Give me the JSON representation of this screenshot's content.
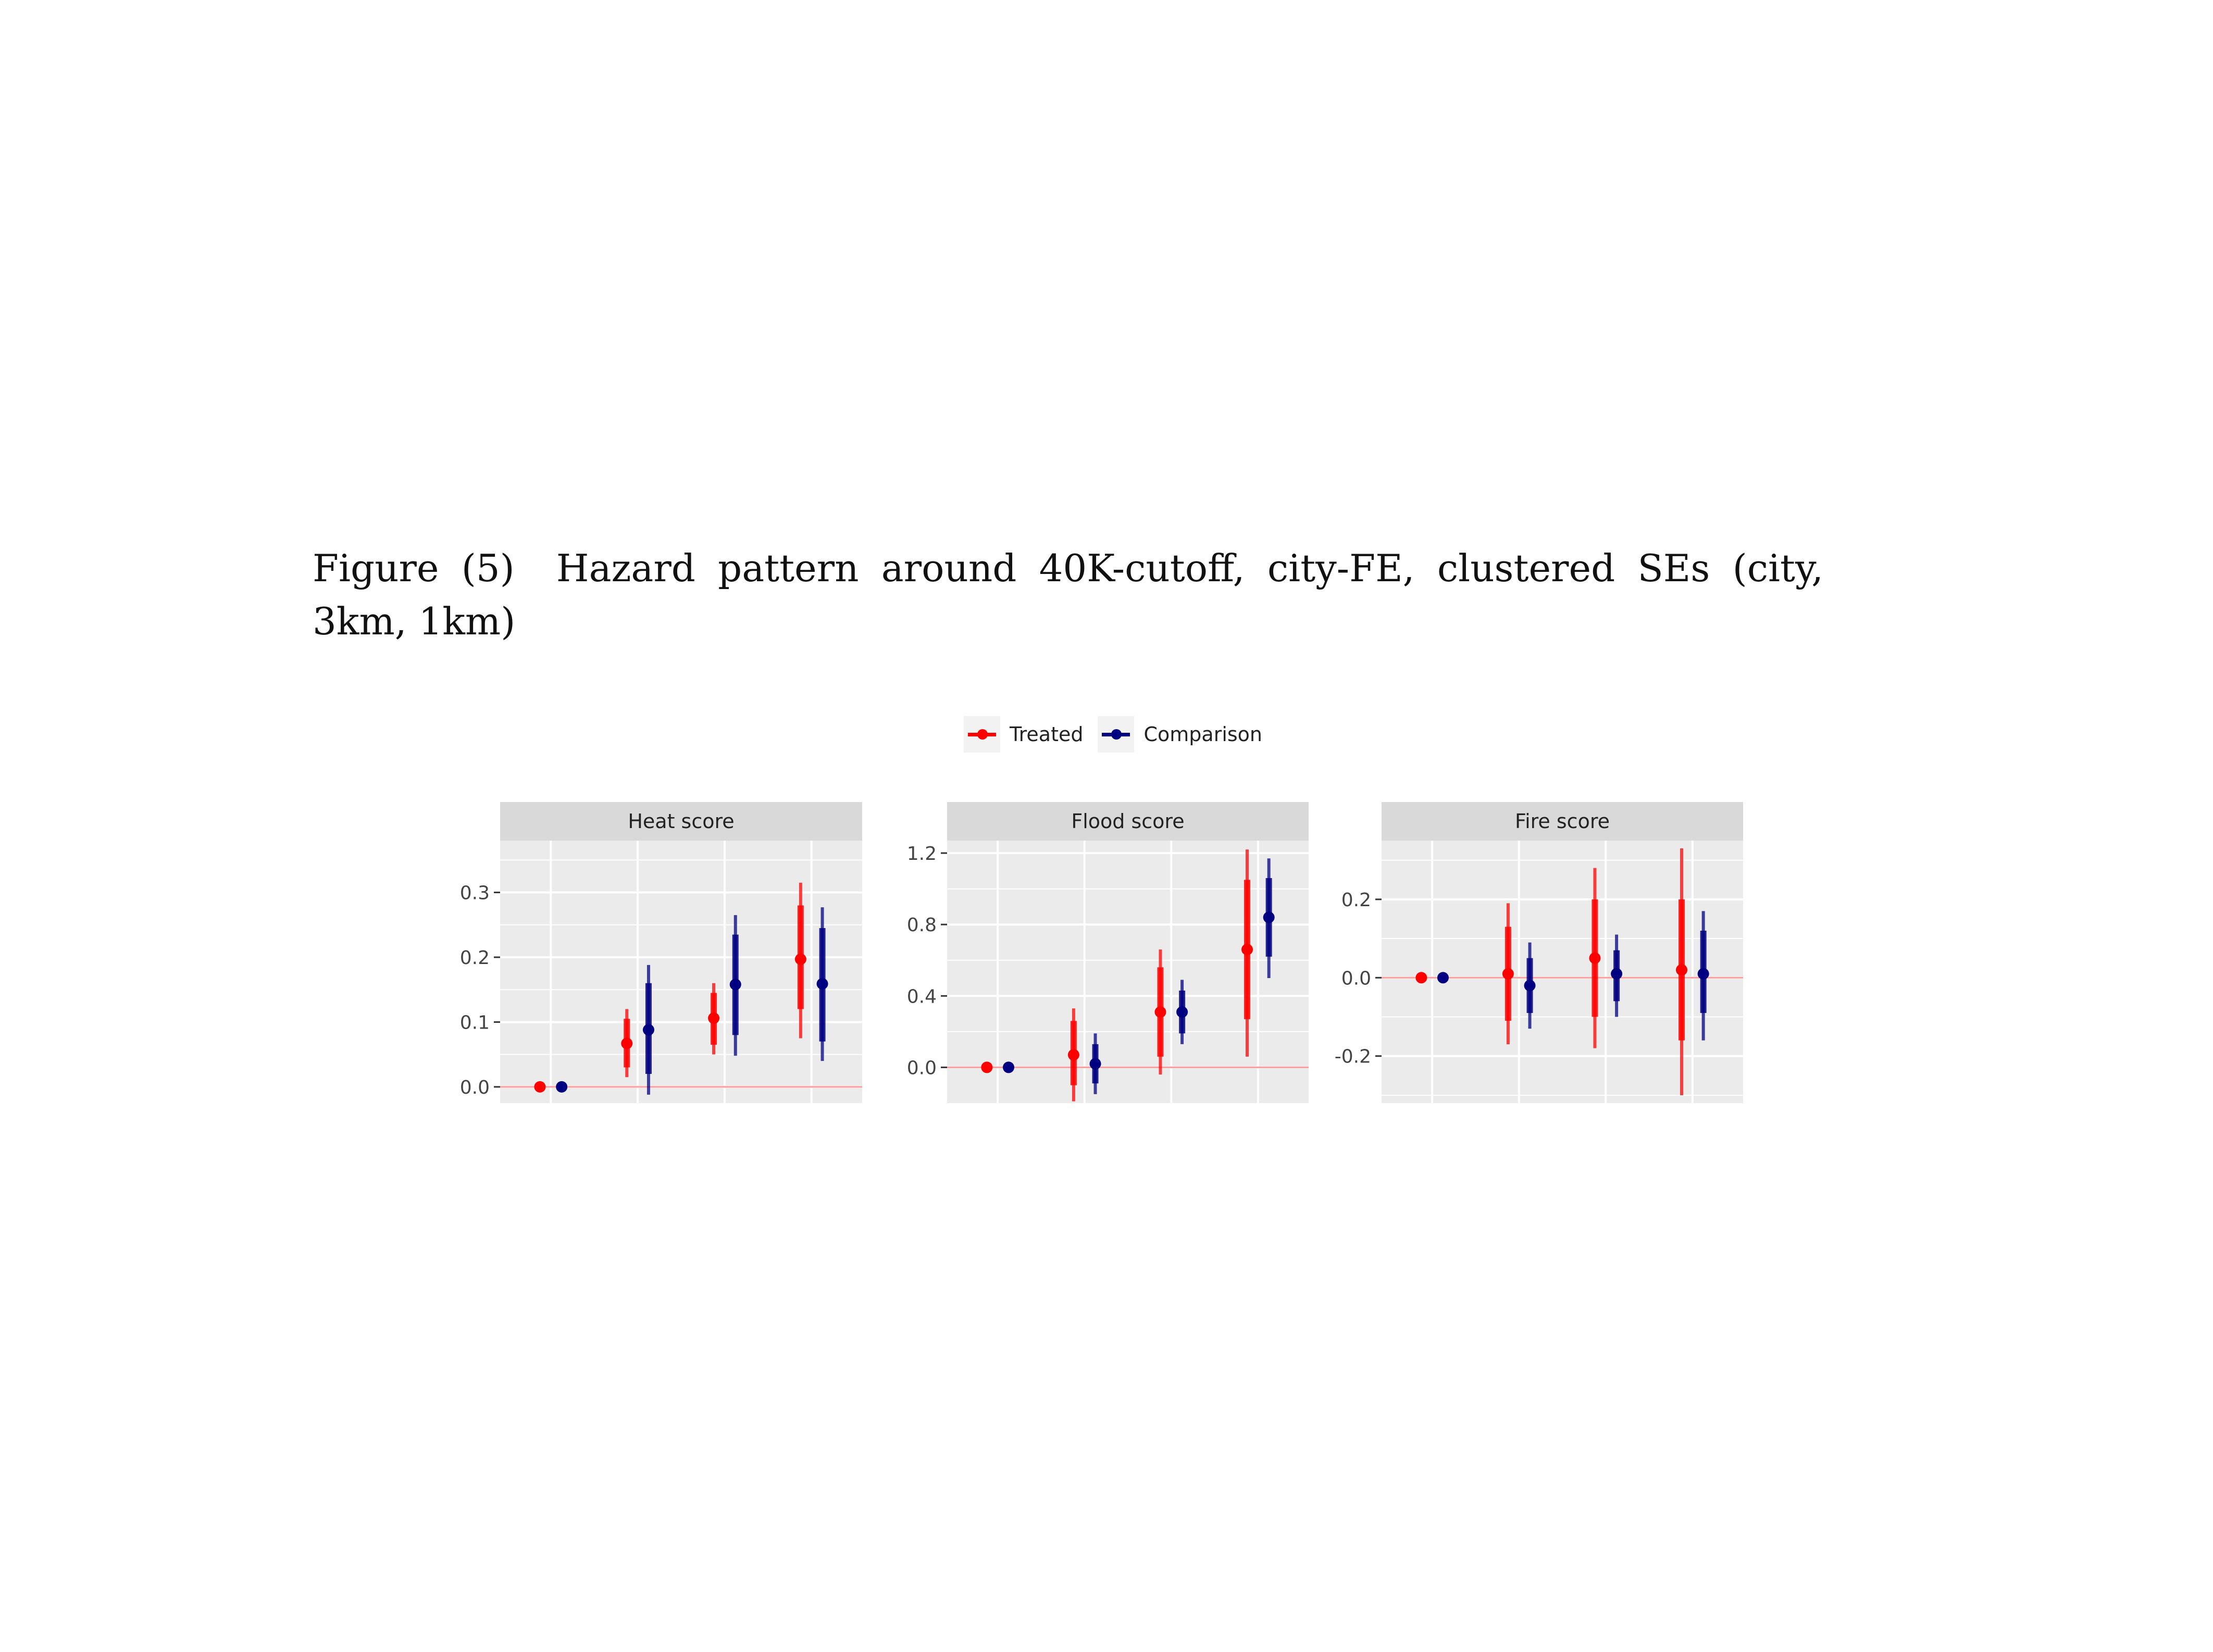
{
  "caption": {
    "figure_label": "Figure (5)",
    "text": "Hazard pattern around 40K-cutoff, city-FE, clustered SEs (city, 3km, 1km)"
  },
  "legend": {
    "items": [
      {
        "label": "Treated",
        "color": "#ff0000"
      },
      {
        "label": "Comparison",
        "color": "#000080"
      }
    ]
  },
  "chart_data": [
    {
      "type": "scatter",
      "title": "Heat score",
      "xlabel": "",
      "ylabel": "",
      "ylim": [
        -0.025,
        0.38
      ],
      "yticks": [
        0.0,
        0.1,
        0.2,
        0.3
      ],
      "ytick_labels": [
        "0.0",
        "0.1",
        "0.2",
        "0.3"
      ],
      "grid": true,
      "zero_line": 0,
      "x": [
        1,
        2,
        3,
        4
      ],
      "series": [
        {
          "name": "Treated",
          "values": [
            0.0,
            0.067,
            0.106,
            0.197
          ],
          "ci_outer": [
            [
              0,
              0
            ],
            [
              0.015,
              0.12
            ],
            [
              0.05,
              0.16
            ],
            [
              0.075,
              0.315
            ]
          ],
          "ci_inner": [
            [
              0,
              0
            ],
            [
              0.03,
              0.105
            ],
            [
              0.065,
              0.145
            ],
            [
              0.12,
              0.28
            ]
          ]
        },
        {
          "name": "Comparison",
          "values": [
            0.0,
            0.088,
            0.158,
            0.159
          ],
          "ci_outer": [
            [
              0,
              0
            ],
            [
              -0.012,
              0.188
            ],
            [
              0.048,
              0.265
            ],
            [
              0.04,
              0.277
            ]
          ],
          "ci_inner": [
            [
              0,
              0
            ],
            [
              0.02,
              0.16
            ],
            [
              0.08,
              0.235
            ],
            [
              0.07,
              0.245
            ]
          ]
        }
      ]
    },
    {
      "type": "scatter",
      "title": "Flood score",
      "xlabel": "",
      "ylabel": "",
      "ylim": [
        -0.2,
        1.27
      ],
      "yticks": [
        0.0,
        0.4,
        0.8,
        1.2
      ],
      "ytick_labels": [
        "0.0",
        "0.4",
        "0.8",
        "1.2"
      ],
      "grid": true,
      "zero_line": 0,
      "x": [
        1,
        2,
        3,
        4
      ],
      "series": [
        {
          "name": "Treated",
          "values": [
            0.0,
            0.07,
            0.31,
            0.66
          ],
          "ci_outer": [
            [
              0,
              0
            ],
            [
              -0.19,
              0.33
            ],
            [
              -0.04,
              0.66
            ],
            [
              0.06,
              1.22
            ]
          ],
          "ci_inner": [
            [
              0,
              0
            ],
            [
              -0.1,
              0.26
            ],
            [
              0.06,
              0.56
            ],
            [
              0.27,
              1.05
            ]
          ]
        },
        {
          "name": "Comparison",
          "values": [
            0.0,
            0.02,
            0.31,
            0.84
          ],
          "ci_outer": [
            [
              0,
              0
            ],
            [
              -0.15,
              0.19
            ],
            [
              0.13,
              0.49
            ],
            [
              0.5,
              1.17
            ]
          ],
          "ci_inner": [
            [
              0,
              0
            ],
            [
              -0.09,
              0.13
            ],
            [
              0.19,
              0.43
            ],
            [
              0.62,
              1.06
            ]
          ]
        }
      ]
    },
    {
      "type": "scatter",
      "title": "Fire score",
      "xlabel": "",
      "ylabel": "",
      "ylim": [
        -0.32,
        0.35
      ],
      "yticks": [
        -0.2,
        0.0,
        0.2
      ],
      "ytick_labels": [
        "-0.2",
        "0.0",
        "0.2"
      ],
      "grid": true,
      "zero_line": 0,
      "x": [
        1,
        2,
        3,
        4
      ],
      "series": [
        {
          "name": "Treated",
          "values": [
            0.0,
            0.01,
            0.05,
            0.02
          ],
          "ci_outer": [
            [
              0,
              0
            ],
            [
              -0.17,
              0.19
            ],
            [
              -0.18,
              0.28
            ],
            [
              -0.3,
              0.33
            ]
          ],
          "ci_inner": [
            [
              0,
              0
            ],
            [
              -0.11,
              0.13
            ],
            [
              -0.1,
              0.2
            ],
            [
              -0.16,
              0.2
            ]
          ]
        },
        {
          "name": "Comparison",
          "values": [
            0.0,
            -0.02,
            0.01,
            0.01
          ],
          "ci_outer": [
            [
              0,
              0
            ],
            [
              -0.13,
              0.09
            ],
            [
              -0.1,
              0.11
            ],
            [
              -0.16,
              0.17
            ]
          ],
          "ci_inner": [
            [
              0,
              0
            ],
            [
              -0.09,
              0.05
            ],
            [
              -0.06,
              0.07
            ],
            [
              -0.09,
              0.12
            ]
          ]
        }
      ]
    }
  ],
  "style": {
    "panel_bg": "#ebebeb",
    "strip_bg": "#d9d9d9",
    "grid_color": "#ffffff",
    "zero_line_color": "#ff9a9a"
  }
}
